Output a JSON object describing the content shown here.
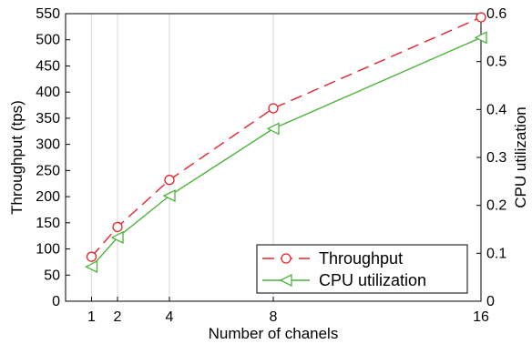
{
  "chart_data": {
    "type": "line",
    "xlabel": "Number of chanels",
    "ylabel": "Throughput (tps)",
    "y2label": "CPU utilization",
    "x": [
      1,
      2,
      4,
      8,
      16
    ],
    "x_ticks": [
      "1",
      "2",
      "4",
      "8",
      "16"
    ],
    "xlim": [
      0,
      16
    ],
    "ylim": [
      0,
      550
    ],
    "y_ticks": [
      "0",
      "50",
      "100",
      "150",
      "200",
      "250",
      "300",
      "350",
      "400",
      "450",
      "500",
      "550"
    ],
    "y2lim": [
      0,
      0.6
    ],
    "y2_ticks": [
      "0",
      "0.1",
      "0.2",
      "0.3",
      "0.4",
      "0.5",
      "0.6"
    ],
    "grid": "vertical",
    "legend_position": "bottom-right",
    "series": [
      {
        "name": "Throughput",
        "axis": "left",
        "values": [
          85,
          142,
          232,
          369,
          543
        ],
        "color": "#e8202a",
        "line_style": "dashed",
        "marker": "circle"
      },
      {
        "name": "CPU utilization",
        "axis": "right",
        "values": [
          0.072,
          0.133,
          0.22,
          0.36,
          0.55
        ],
        "color": "#4cb33a",
        "line_style": "solid",
        "marker": "triangle-left"
      }
    ]
  }
}
